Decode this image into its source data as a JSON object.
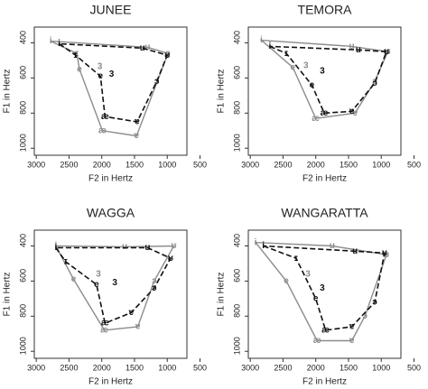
{
  "chart_data": [
    {
      "type": "line",
      "title": "JUNEE",
      "xlabel": "F2 in Hertz",
      "ylabel": "F1 in Hertz",
      "xlim": [
        3030,
        700
      ],
      "xticks": [
        3000,
        2500,
        2000,
        1500,
        1000,
        500
      ],
      "ylim": [
        1040,
        310
      ],
      "yticks": [
        400,
        600,
        800,
        1000
      ],
      "series": [
        {
          "name": "gray",
          "color": "#8c8c8c",
          "dash": false,
          "x": [
            2780,
            2380,
            2340,
            1990,
            1470,
            990,
            1300
          ],
          "values": [
            390,
            460,
            550,
            900,
            930,
            460,
            425
          ],
          "point_labels": [
            "i",
            "ɪ",
            "e",
            "æ",
            "ɐ",
            "ɔ",
            "u"
          ]
        },
        {
          "name": "black",
          "color": "#111111",
          "dash": true,
          "x": [
            2650,
            2400,
            2020,
            1950,
            1460,
            1160,
            1000,
            1380
          ],
          "values": [
            405,
            470,
            590,
            820,
            850,
            620,
            470,
            430
          ],
          "point_labels": [
            "i",
            "ɪ",
            "e",
            "æ",
            "ɐ",
            "ɔ",
            "ʊ",
            "u"
          ]
        }
      ],
      "markers": [
        {
          "label": "3",
          "color": "#8c8c8c",
          "x": 2030,
          "y": 535
        },
        {
          "label": "3",
          "color": "#111111",
          "x": 1850,
          "y": 580
        }
      ]
    },
    {
      "type": "line",
      "title": "TEMORA",
      "xlabel": "F2 in Hertz",
      "ylabel": "F1 in Hertz",
      "xlim": [
        3030,
        700
      ],
      "xticks": [
        3000,
        2500,
        2000,
        1500,
        1000,
        500
      ],
      "ylim": [
        1040,
        310
      ],
      "yticks": [
        400,
        600,
        800,
        1000
      ],
      "series": [
        {
          "name": "gray",
          "color": "#8c8c8c",
          "dash": false,
          "x": [
            2830,
            2350,
            2000,
            1400,
            1100,
            900,
            1450
          ],
          "values": [
            385,
            540,
            830,
            800,
            620,
            450,
            420
          ],
          "point_labels": [
            "i",
            "e",
            "æ",
            "ɐ",
            "ɔ",
            "ʊ",
            "u"
          ]
        },
        {
          "name": "black",
          "color": "#111111",
          "dash": true,
          "x": [
            2700,
            2450,
            2060,
            1870,
            1450,
            1100,
            920,
            1350
          ],
          "values": [
            420,
            460,
            640,
            800,
            790,
            630,
            450,
            440
          ],
          "point_labels": [
            "i",
            "ɪ",
            "e",
            "æ",
            "ɐ",
            "ɔ",
            "ʊ",
            "u"
          ]
        }
      ],
      "markers": [
        {
          "label": "3",
          "color": "#8c8c8c",
          "x": 2150,
          "y": 530
        },
        {
          "label": "3",
          "color": "#111111",
          "x": 1900,
          "y": 560
        }
      ]
    },
    {
      "type": "line",
      "title": "WAGGA",
      "xlabel": "F2 in Hertz",
      "ylabel": "F1 in Hertz",
      "xlim": [
        3030,
        700
      ],
      "xticks": [
        3000,
        2500,
        2000,
        1500,
        1000,
        500
      ],
      "ylim": [
        1040,
        310
      ],
      "yticks": [
        400,
        600,
        800,
        1000
      ],
      "series": [
        {
          "name": "gray",
          "color": "#8c8c8c",
          "dash": false,
          "x": [
            2700,
            2430,
            1960,
            1450,
            1200,
            900,
            1650
          ],
          "values": [
            400,
            590,
            880,
            860,
            600,
            400,
            405
          ],
          "point_labels": [
            "i",
            "e",
            "æ",
            "ɐ",
            "ɔ",
            "ʊ",
            "u"
          ]
        },
        {
          "name": "black",
          "color": "#111111",
          "dash": true,
          "x": [
            2700,
            2550,
            2080,
            1950,
            1550,
            1200,
            950,
            1300
          ],
          "values": [
            410,
            490,
            620,
            840,
            780,
            640,
            470,
            410
          ],
          "point_labels": [
            "i",
            "ɪ",
            "e",
            "æ",
            "ɐ",
            "ɔ",
            "ʊ",
            "u"
          ]
        }
      ],
      "markers": [
        {
          "label": "3",
          "color": "#8c8c8c",
          "x": 2050,
          "y": 560
        },
        {
          "label": "3",
          "color": "#111111",
          "x": 1800,
          "y": 610
        }
      ]
    },
    {
      "type": "line",
      "title": "WANGARATTA",
      "xlabel": "F2 in Hertz",
      "ylabel": "F1 in Hertz",
      "xlim": [
        3030,
        700
      ],
      "xticks": [
        3000,
        2500,
        2000,
        1500,
        1000,
        500
      ],
      "ylim": [
        1040,
        310
      ],
      "yticks": [
        400,
        600,
        800,
        1000
      ],
      "series": [
        {
          "name": "gray",
          "color": "#8c8c8c",
          "dash": false,
          "x": [
            2920,
            2450,
            1980,
            1450,
            1250,
            920,
            1750
          ],
          "values": [
            380,
            600,
            940,
            940,
            800,
            450,
            400
          ],
          "point_labels": [
            "i",
            "e",
            "æ",
            "ɐ",
            "ɔ",
            "ʊ",
            "u"
          ]
        },
        {
          "name": "black",
          "color": "#111111",
          "dash": true,
          "x": [
            2800,
            2300,
            2000,
            1850,
            1450,
            1100,
            950,
            1400
          ],
          "values": [
            400,
            470,
            700,
            880,
            860,
            720,
            440,
            430
          ],
          "point_labels": [
            "i",
            "ɪ",
            "e",
            "æ",
            "ɐ",
            "ɔ",
            "ʊ",
            "u"
          ]
        }
      ],
      "markers": [
        {
          "label": "3",
          "color": "#8c8c8c",
          "x": 2120,
          "y": 560
        },
        {
          "label": "3",
          "color": "#111111",
          "x": 1900,
          "y": 640
        }
      ]
    }
  ]
}
